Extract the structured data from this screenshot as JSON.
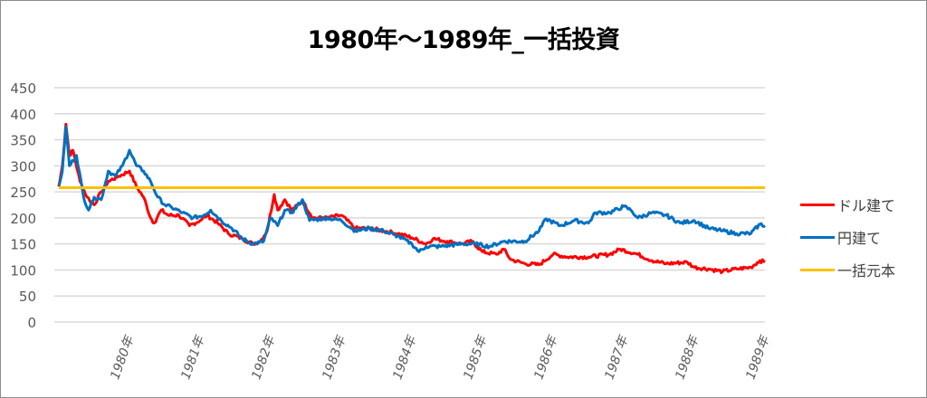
{
  "chart_data": {
    "type": "line",
    "title": "1980年～1989年_一括投資",
    "xlabel": "",
    "ylabel": "",
    "ylim": [
      0,
      450
    ],
    "yticks": [
      "0",
      "50",
      "100",
      "150",
      "200",
      "250",
      "300",
      "350",
      "400",
      "450"
    ],
    "xlim": [
      1979.0,
      1989.0
    ],
    "xticks": [
      {
        "x": 1980,
        "label": "1980年"
      },
      {
        "x": 1981,
        "label": "1981年"
      },
      {
        "x": 1982,
        "label": "1982年"
      },
      {
        "x": 1983,
        "label": "1983年"
      },
      {
        "x": 1984,
        "label": "1984年"
      },
      {
        "x": 1985,
        "label": "1985年"
      },
      {
        "x": 1986,
        "label": "1986年"
      },
      {
        "x": 1987,
        "label": "1987年"
      },
      {
        "x": 1988,
        "label": "1988年"
      },
      {
        "x": 1989,
        "label": "1989年"
      }
    ],
    "grid": true,
    "legend_position": "right",
    "series": [
      {
        "name": "ドル建て",
        "color": "#ff0000",
        "points": [
          [
            1979.0,
            260
          ],
          [
            1979.05,
            300
          ],
          [
            1979.1,
            380
          ],
          [
            1979.15,
            320
          ],
          [
            1979.2,
            330
          ],
          [
            1979.3,
            270
          ],
          [
            1979.4,
            240
          ],
          [
            1979.5,
            225
          ],
          [
            1979.6,
            250
          ],
          [
            1979.7,
            270
          ],
          [
            1979.85,
            280
          ],
          [
            1980.0,
            290
          ],
          [
            1980.1,
            260
          ],
          [
            1980.2,
            240
          ],
          [
            1980.3,
            200
          ],
          [
            1980.35,
            190
          ],
          [
            1980.45,
            215
          ],
          [
            1980.55,
            205
          ],
          [
            1980.7,
            205
          ],
          [
            1980.85,
            185
          ],
          [
            1981.0,
            195
          ],
          [
            1981.1,
            205
          ],
          [
            1981.25,
            190
          ],
          [
            1981.4,
            170
          ],
          [
            1981.6,
            160
          ],
          [
            1981.75,
            150
          ],
          [
            1981.85,
            155
          ],
          [
            1981.95,
            175
          ],
          [
            1982.05,
            245
          ],
          [
            1982.1,
            215
          ],
          [
            1982.2,
            235
          ],
          [
            1982.3,
            215
          ],
          [
            1982.45,
            232
          ],
          [
            1982.6,
            200
          ],
          [
            1982.8,
            200
          ],
          [
            1983.0,
            205
          ],
          [
            1983.2,
            180
          ],
          [
            1983.4,
            180
          ],
          [
            1983.6,
            175
          ],
          [
            1983.8,
            170
          ],
          [
            1984.0,
            162
          ],
          [
            1984.2,
            150
          ],
          [
            1984.3,
            160
          ],
          [
            1984.5,
            155
          ],
          [
            1984.7,
            150
          ],
          [
            1984.85,
            155
          ],
          [
            1985.0,
            135
          ],
          [
            1985.2,
            130
          ],
          [
            1985.3,
            140
          ],
          [
            1985.4,
            120
          ],
          [
            1985.6,
            112
          ],
          [
            1985.8,
            110
          ],
          [
            1986.0,
            130
          ],
          [
            1986.2,
            125
          ],
          [
            1986.5,
            125
          ],
          [
            1986.8,
            130
          ],
          [
            1986.95,
            140
          ],
          [
            1987.2,
            130
          ],
          [
            1987.4,
            118
          ],
          [
            1987.6,
            112
          ],
          [
            1987.9,
            115
          ],
          [
            1988.0,
            105
          ],
          [
            1988.2,
            102
          ],
          [
            1988.4,
            97
          ],
          [
            1988.6,
            102
          ],
          [
            1988.8,
            105
          ],
          [
            1988.93,
            118
          ],
          [
            1989.0,
            115
          ]
        ]
      },
      {
        "name": "円建て",
        "color": "#0070c0",
        "points": [
          [
            1979.0,
            262
          ],
          [
            1979.05,
            290
          ],
          [
            1979.1,
            375
          ],
          [
            1979.15,
            300
          ],
          [
            1979.25,
            320
          ],
          [
            1979.35,
            240
          ],
          [
            1979.42,
            215
          ],
          [
            1979.5,
            240
          ],
          [
            1979.6,
            235
          ],
          [
            1979.7,
            290
          ],
          [
            1979.8,
            280
          ],
          [
            1979.9,
            300
          ],
          [
            1980.0,
            330
          ],
          [
            1980.1,
            300
          ],
          [
            1980.2,
            290
          ],
          [
            1980.3,
            270
          ],
          [
            1980.4,
            240
          ],
          [
            1980.5,
            225
          ],
          [
            1980.6,
            220
          ],
          [
            1980.75,
            210
          ],
          [
            1980.9,
            200
          ],
          [
            1981.05,
            205
          ],
          [
            1981.15,
            215
          ],
          [
            1981.3,
            195
          ],
          [
            1981.45,
            180
          ],
          [
            1981.6,
            160
          ],
          [
            1981.75,
            150
          ],
          [
            1981.9,
            155
          ],
          [
            1982.0,
            200
          ],
          [
            1982.1,
            185
          ],
          [
            1982.2,
            215
          ],
          [
            1982.3,
            210
          ],
          [
            1982.45,
            235
          ],
          [
            1982.55,
            195
          ],
          [
            1982.8,
            200
          ],
          [
            1983.0,
            195
          ],
          [
            1983.2,
            175
          ],
          [
            1983.4,
            180
          ],
          [
            1983.6,
            175
          ],
          [
            1983.8,
            165
          ],
          [
            1984.0,
            150
          ],
          [
            1984.1,
            135
          ],
          [
            1984.2,
            145
          ],
          [
            1984.4,
            145
          ],
          [
            1984.7,
            150
          ],
          [
            1984.9,
            150
          ],
          [
            1985.1,
            145
          ],
          [
            1985.3,
            155
          ],
          [
            1985.6,
            155
          ],
          [
            1985.8,
            175
          ],
          [
            1985.9,
            198
          ],
          [
            1986.1,
            185
          ],
          [
            1986.3,
            195
          ],
          [
            1986.5,
            190
          ],
          [
            1986.6,
            210
          ],
          [
            1986.8,
            210
          ],
          [
            1987.0,
            222
          ],
          [
            1987.1,
            215
          ],
          [
            1987.2,
            200
          ],
          [
            1987.4,
            210
          ],
          [
            1987.6,
            205
          ],
          [
            1987.8,
            190
          ],
          [
            1988.0,
            195
          ],
          [
            1988.2,
            180
          ],
          [
            1988.4,
            175
          ],
          [
            1988.6,
            170
          ],
          [
            1988.8,
            170
          ],
          [
            1988.93,
            188
          ],
          [
            1989.0,
            185
          ]
        ]
      },
      {
        "name": "一括元本",
        "color": "#ffc000",
        "points": [
          [
            1979.0,
            258
          ],
          [
            1989.0,
            258
          ]
        ]
      }
    ]
  }
}
